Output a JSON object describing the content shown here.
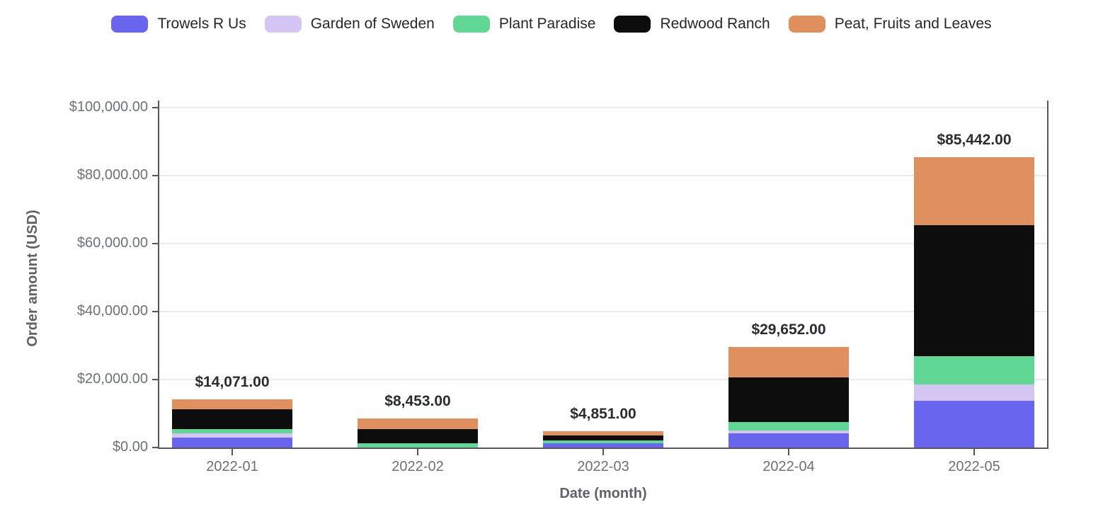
{
  "colors": {
    "axis": "#55575c",
    "grid": "#e9e8f4",
    "tick_text": "#6d7076",
    "axis_title_text": "#606268",
    "total_label_text": "#2b2c2e",
    "legend_text": "#26272a",
    "background": "#ffffff"
  },
  "chart_data": {
    "type": "bar",
    "stacked": true,
    "legend_position": "top",
    "grid": true,
    "xlabel": "Date (month)",
    "ylabel": "Order amount (USD)",
    "ylim": [
      0,
      100000
    ],
    "categories": [
      "2022-01",
      "2022-02",
      "2022-03",
      "2022-04",
      "2022-05"
    ],
    "series": [
      {
        "name": "Trowels R Us",
        "color": "#6965ee",
        "values": [
          2850,
          0,
          1250,
          4250,
          13800
        ]
      },
      {
        "name": "Garden of Sweden",
        "color": "#d5c5f2",
        "values": [
          1250,
          0,
          0,
          700,
          4800
        ]
      },
      {
        "name": "Plant Paradise",
        "color": "#61d795",
        "values": [
          1300,
          1300,
          900,
          2600,
          8330
        ]
      },
      {
        "name": "Redwood Ranch",
        "color": "#0d0d0d",
        "values": [
          5790,
          4100,
          1450,
          13100,
          38420
        ]
      },
      {
        "name": "Peat, Fruits and Leaves",
        "color": "#e0905f",
        "values": [
          2881,
          3053,
          1251,
          9002,
          20092
        ]
      }
    ],
    "totals": [
      14071,
      8453,
      4851,
      29652,
      85442
    ],
    "total_labels": [
      "$14,071.00",
      "$8,453.00",
      "$4,851.00",
      "$29,652.00",
      "$85,442.00"
    ],
    "yticks": [
      {
        "value": 0,
        "label": "$0.00"
      },
      {
        "value": 20000,
        "label": "$20,000.00"
      },
      {
        "value": 40000,
        "label": "$40,000.00"
      },
      {
        "value": 60000,
        "label": "$60,000.00"
      },
      {
        "value": 80000,
        "label": "$80,000.00"
      },
      {
        "value": 100000,
        "label": "$100,000.00"
      }
    ]
  }
}
